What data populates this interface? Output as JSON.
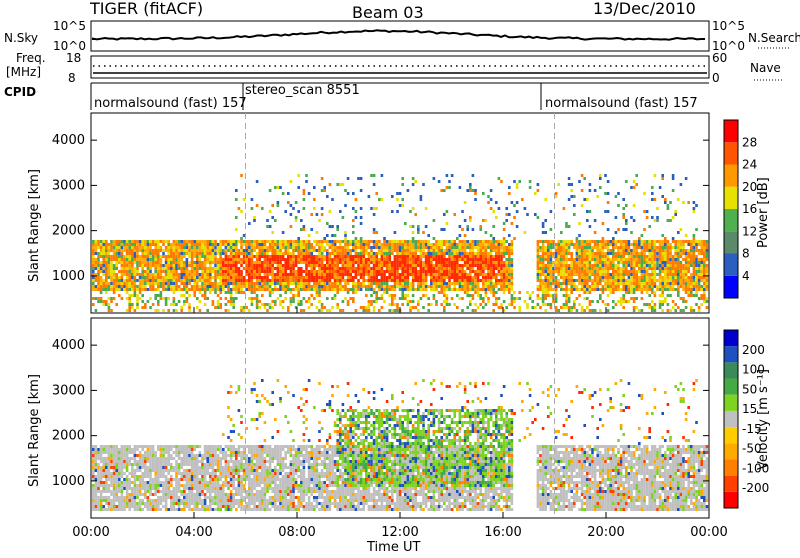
{
  "header": {
    "radar": "TIGER (fitACF)",
    "beam": "Beam 03",
    "date": "13/Dec/2010"
  },
  "side_labels": {
    "nsky": "N.Sky",
    "nsky_ticks": [
      "10^5",
      "10^0"
    ],
    "nsearch": "N.Search",
    "nsearch_ticks": [
      "10^5",
      "10^0"
    ],
    "freq": "Freq.",
    "freq_unit": "[MHz]",
    "freq_ticks": [
      "18",
      "8"
    ],
    "nave": "Nave",
    "nave_ticks": [
      "60",
      "0"
    ],
    "cpid": "CPID"
  },
  "cpid_segments": [
    {
      "label": "normalsound (fast) 157"
    },
    {
      "label": "stereo_scan 8551"
    },
    {
      "label": "normalsound (fast) 157"
    }
  ],
  "x_axis": {
    "title": "Time UT",
    "ticks": [
      "00:00",
      "04:00",
      "08:00",
      "12:00",
      "16:00",
      "20:00",
      "00:00"
    ]
  },
  "power_colorbar": {
    "label": "Power [dB]",
    "ticks": [
      "28",
      "24",
      "20",
      "16",
      "12",
      "8",
      "4"
    ],
    "colors": [
      "#0000ff",
      "#2a5fbf",
      "#5a8a6a",
      "#50b050",
      "#e8e000",
      "#ff9900",
      "#ff5500",
      "#ff0000"
    ]
  },
  "velocity_colorbar": {
    "label": "Velocity [m s⁻¹]",
    "ticks": [
      "200",
      "100",
      "50",
      "15",
      "-15",
      "-50",
      "-100",
      "-200"
    ],
    "colors": [
      "#ff0000",
      "#ff4000",
      "#ff8000",
      "#ffaa00",
      "#ffcc00",
      "#c0c0c0",
      "#7ed321",
      "#44aa44",
      "#3a8a5a",
      "#2050c0",
      "#0000cc"
    ]
  },
  "chart_data": {
    "type": "heatmap",
    "ylabel": "Slant Range [km]",
    "xlabel": "Time UT",
    "yticks": [
      1000,
      2000,
      3000,
      4000
    ],
    "xlim_hours": [
      0,
      24
    ],
    "ylim_km": [
      180,
      4600
    ],
    "cpid_transitions_hours": [
      6,
      18
    ],
    "power_regions": [
      {
        "t0": 0,
        "t1": 16,
        "r0": 700,
        "r1": 1800,
        "level": "orange"
      },
      {
        "t0": 5,
        "t1": 12,
        "r0": 800,
        "r1": 1600,
        "level": "red"
      },
      {
        "t0": 17,
        "t1": 24,
        "r0": 800,
        "r1": 1800,
        "level": "orange"
      },
      {
        "t0": 6,
        "t1": 16,
        "r0": 1800,
        "r1": 3200,
        "level": "sparse"
      }
    ],
    "velocity_regions": [
      {
        "t0": 0,
        "t1": 24,
        "r0": 400,
        "r1": 1800,
        "level": "ground-scatter-grey"
      },
      {
        "t0": 10,
        "t1": 16,
        "r0": 1300,
        "r1": 2600,
        "level": "mixed-green-blue"
      },
      {
        "t0": 5,
        "t1": 7,
        "r0": 1800,
        "r1": 2200,
        "level": "red"
      }
    ]
  }
}
